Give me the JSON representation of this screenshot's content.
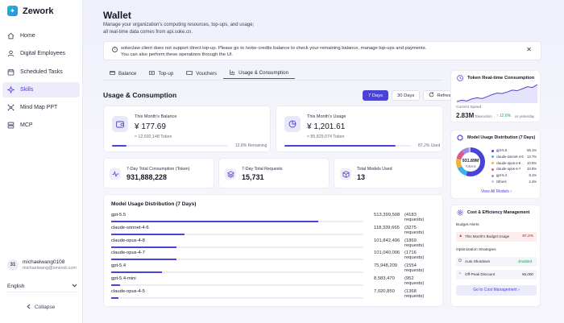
{
  "app": {
    "name": "Zework"
  },
  "sidebar": {
    "items": [
      {
        "label": "Home",
        "icon": "home-icon",
        "active": false
      },
      {
        "label": "Digital Employees",
        "icon": "user-icon",
        "active": false
      },
      {
        "label": "Scheduled Tasks",
        "icon": "calendar-icon",
        "active": false
      },
      {
        "label": "Skills",
        "icon": "sparkle-icon",
        "active": true
      },
      {
        "label": "Mind Map PPT",
        "icon": "mindmap-icon",
        "active": false
      },
      {
        "label": "MCP",
        "icon": "server-icon",
        "active": false
      }
    ],
    "user": {
      "avatar": "31",
      "name": "michaelwang0108",
      "email": "michaelwang@zework.com"
    },
    "language": "English",
    "collapse_label": "Collapse"
  },
  "page": {
    "title": "Wallet",
    "subtitle_line1": "Manage your organization's computing resources, top-ups, and usage;",
    "subtitle_line2": "all real-time data comes from api.soke.cn.",
    "notice_line1": "sokeclaw client does not support direct top-up. Please go to /soke-credits balance to check your remaining balance, manage top-ups and payments.",
    "notice_line2": "You can also perform these operations through the UI."
  },
  "tabs": [
    {
      "label": "Balance",
      "icon": "balance-icon",
      "active": false
    },
    {
      "label": "Top-up",
      "icon": "topup-icon",
      "active": false
    },
    {
      "label": "Vouchers",
      "icon": "voucher-icon",
      "active": false
    },
    {
      "label": "Usage & Consumption",
      "icon": "chart-icon",
      "active": true
    }
  ],
  "usage": {
    "title": "Usage & Consumption",
    "range": {
      "btn7": "7 Days",
      "btn30": "30 Days",
      "refresh": "Refresh"
    },
    "balance": {
      "label": "This Month's Balance",
      "value": "¥ 177.69",
      "tokens": "≈ 12,692,148 Token",
      "note": "12.8% Remaining",
      "fraction": 0.128
    },
    "usage": {
      "label": "This Month's Usage",
      "value": "¥ 1,201.61",
      "tokens": "≈ 85,829,074 Token",
      "note": "87.2% Used",
      "fraction": 0.872
    },
    "stats": [
      {
        "label": "7-Day Total Consumption (Token)",
        "value": "931,888,228",
        "icon": "pulse-icon"
      },
      {
        "label": "7-Day Total Requests",
        "value": "15,731",
        "icon": "layers-icon"
      },
      {
        "label": "Total Models Used",
        "value": "13",
        "icon": "cube-icon"
      }
    ],
    "distribution": {
      "title": "Model Usage Distribution (7 Days)",
      "rows": [
        {
          "name": "gpt-5.5",
          "value": "513,399,508",
          "requests": "(4183 requests)",
          "fraction": 0.82
        },
        {
          "name": "claude-sonnet-4-6",
          "value": "118,339,665",
          "requests": "(3275 requests)",
          "fraction": 0.29
        },
        {
          "name": "claude-opus-4-8",
          "value": "101,842,496",
          "requests": "(1869 requests)",
          "fraction": 0.26
        },
        {
          "name": "claude-opus-4-7",
          "value": "101,040,006",
          "requests": "(1716 requests)",
          "fraction": 0.26
        },
        {
          "name": "gpt-5.4",
          "value": "75,948,209",
          "requests": "(1554 requests)",
          "fraction": 0.2
        },
        {
          "name": "gpt-5.4-mini",
          "value": "8,583,470",
          "requests": "(952 requests)",
          "fraction": 0.035
        },
        {
          "name": "claude-opus-4-5",
          "value": "7,020,850",
          "requests": "(1368 requests)",
          "fraction": 0.03
        }
      ]
    }
  },
  "realtime": {
    "title": "Token Real-time Consumption",
    "current_label": "Current Speed",
    "speed": "2.83M",
    "unit": "Tokens/min",
    "change": "↑ 12.6%",
    "change_note": "vs yesterday",
    "sparkline": [
      4,
      4.5,
      4.2,
      5,
      5.4,
      5.1,
      5.8,
      6.6,
      7.2,
      7,
      7.6,
      8.3,
      8.1,
      8.8,
      9.6,
      9.3,
      10.4
    ]
  },
  "donut": {
    "title": "Model Usage Distribution (7 Days)",
    "center_value": "931.89M",
    "center_label": "Tokens",
    "legend": [
      {
        "name": "gpt-5.5",
        "pct": "55.1%",
        "value": 55.1,
        "color": "#4b42d6"
      },
      {
        "name": "claude-sonnet-4-6",
        "pct": "12.7%",
        "value": 12.7,
        "color": "#3fb0e8"
      },
      {
        "name": "claude-opus-4-8",
        "pct": "10.9%",
        "value": 10.9,
        "color": "#f0b23a"
      },
      {
        "name": "claude-opus-4-7",
        "pct": "10.8%",
        "value": 10.8,
        "color": "#e2578a"
      },
      {
        "name": "gpt-5.4",
        "pct": "8.1%",
        "value": 8.1,
        "color": "#9a8ce8"
      },
      {
        "name": "Others",
        "pct": "2.4%",
        "value": 2.4,
        "color": "#c9c9d8"
      }
    ],
    "view_all": "View All Models"
  },
  "cost": {
    "title": "Cost & Efficiency Management",
    "alerts_label": "Budget Alerts",
    "alert_text": "This Month's Budget Usage",
    "alert_value": "87.2%",
    "opt_label": "Optimization Strategies",
    "auto_shutdown": "Auto Shutdown",
    "auto_status": "Enabled",
    "offpeak": "Off-Peak Discount",
    "offpeak_value": "¥5,000",
    "goto": "Go to Cost Management"
  }
}
